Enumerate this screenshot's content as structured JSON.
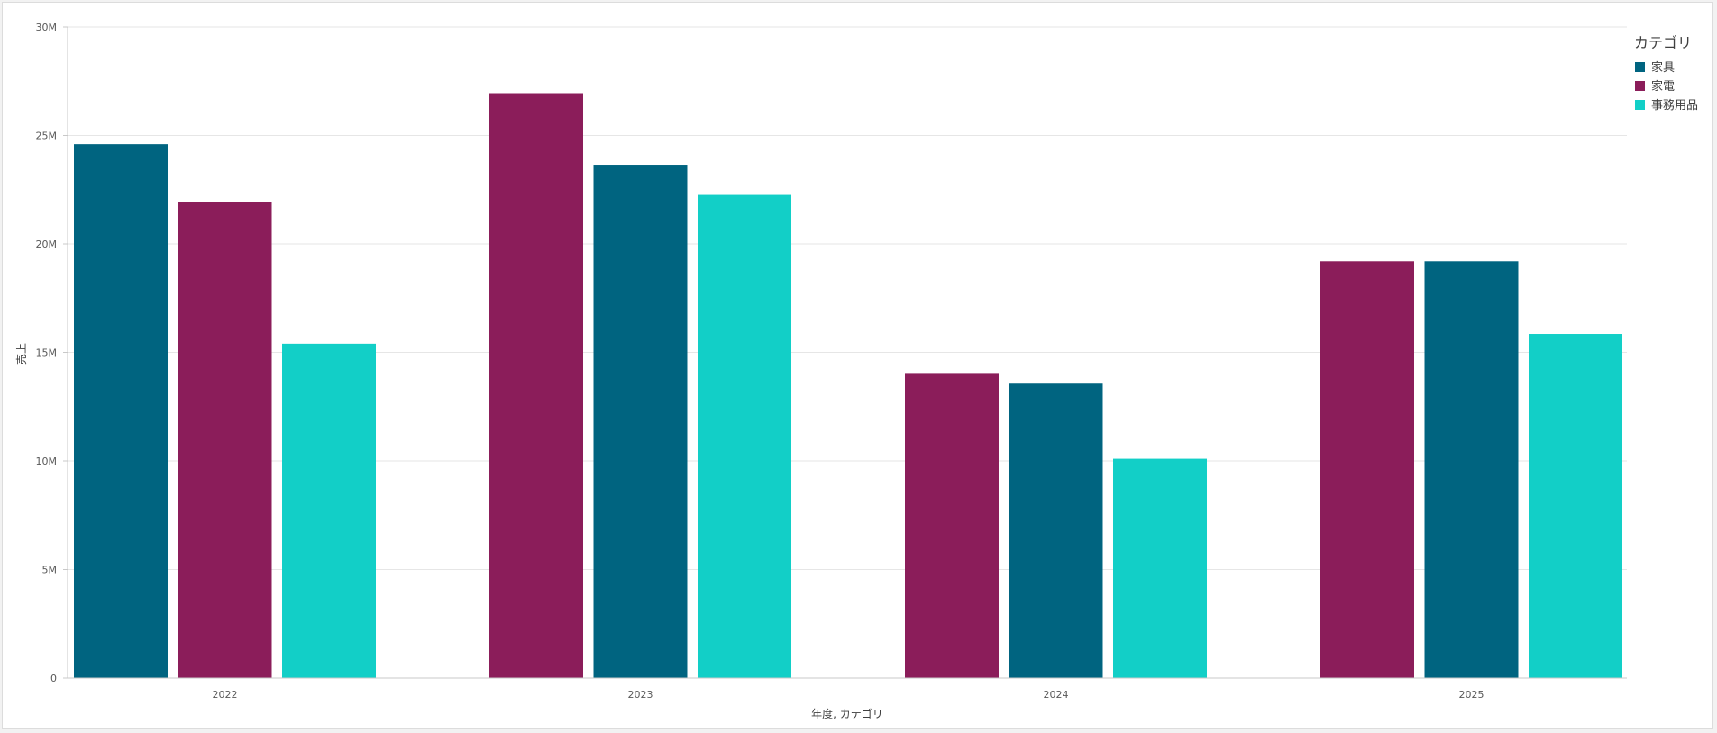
{
  "chart_data": {
    "type": "bar",
    "title": "",
    "xlabel": "年度, カテゴリ",
    "ylabel": "売上",
    "ylim": [
      0,
      30000000
    ],
    "y_ticks": [
      0,
      5000000,
      10000000,
      15000000,
      20000000,
      25000000,
      30000000
    ],
    "y_tick_labels": [
      "0",
      "5M",
      "10M",
      "15M",
      "20M",
      "25M",
      "30M"
    ],
    "grid": true,
    "legend": {
      "title": "カテゴリ",
      "placement": "top-right",
      "entries": [
        {
          "label": "家具",
          "color": "#006480"
        },
        {
          "label": "家電",
          "color": "#8b1d5a"
        },
        {
          "label": "事務用品",
          "color": "#12cfc7"
        }
      ]
    },
    "groups": [
      {
        "label": "2022",
        "bars": [
          {
            "category": "家具",
            "value": 24600000
          },
          {
            "category": "家電",
            "value": 21950000
          },
          {
            "category": "事務用品",
            "value": 15400000
          }
        ]
      },
      {
        "label": "2023",
        "bars": [
          {
            "category": "家電",
            "value": 26950000
          },
          {
            "category": "家具",
            "value": 23650000
          },
          {
            "category": "事務用品",
            "value": 22300000
          }
        ]
      },
      {
        "label": "2024",
        "bars": [
          {
            "category": "家電",
            "value": 14050000
          },
          {
            "category": "家具",
            "value": 13600000
          },
          {
            "category": "事務用品",
            "value": 10100000
          }
        ]
      },
      {
        "label": "2025",
        "bars": [
          {
            "category": "家電",
            "value": 19200000
          },
          {
            "category": "家具",
            "value": 19200000
          },
          {
            "category": "事務用品",
            "value": 15850000
          }
        ]
      }
    ]
  }
}
